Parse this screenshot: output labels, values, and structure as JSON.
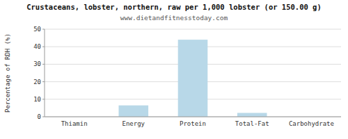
{
  "chart_data": {
    "type": "bar",
    "title": "Crustaceans, lobster, northern, raw per 1,000 lobster (or 150.00 g)",
    "subtitle": "www.dietandfitnesstoday.com",
    "categories": [
      "Thiamin",
      "Energy",
      "Protein",
      "Total-Fat",
      "Carbohydrate"
    ],
    "values": [
      0,
      6.5,
      44,
      2.2,
      0
    ],
    "color": "#b8d8e8",
    "ylabel": "Percentage of RDH (%)",
    "ylim": [
      0,
      50
    ],
    "yticks": [
      0,
      10,
      20,
      30,
      40,
      50
    ],
    "grid": true
  }
}
